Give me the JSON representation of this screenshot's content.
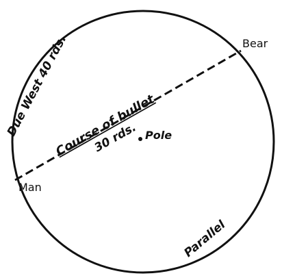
{
  "labels": {
    "due_west": "Due West 40 rds.",
    "bear": "Bear",
    "course": "Course of bullet",
    "distance": "30 rds.",
    "pole": "Pole",
    "man": "Man",
    "parallel": "Parallel"
  }
}
